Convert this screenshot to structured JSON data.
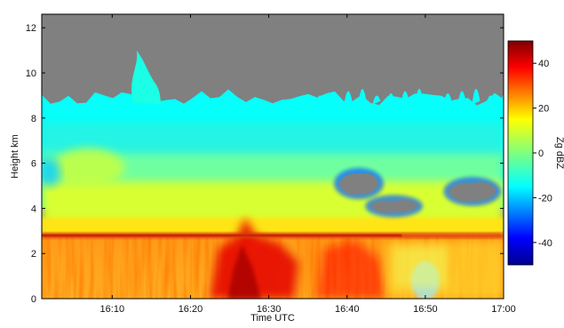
{
  "chart_data": {
    "type": "heatmap",
    "x_axis": {
      "label": "Time UTC",
      "range": [
        "16:01",
        "17:00"
      ],
      "ticks": [
        "16:10",
        "16:20",
        "16:30",
        "16:40",
        "16:50",
        "17:00"
      ]
    },
    "y_axis": {
      "label": "Height km",
      "range": [
        0,
        12.6
      ],
      "ticks": [
        0,
        2,
        4,
        6,
        8,
        10,
        12
      ]
    },
    "colorbar": {
      "label": "Zg dBZ",
      "range": [
        -50,
        50
      ],
      "ticks": [
        -40,
        -20,
        0,
        20,
        40
      ],
      "colormap": "jet"
    },
    "no_echo_color": "#808080",
    "features": {
      "bright_band_height_km": 2.8,
      "cloud_top_height_km": 8.6,
      "max_echo_top_km": 11.0,
      "strongest_echo_time": "16:27",
      "strongest_echo_dbz": 40,
      "background_rain_dbz": 22,
      "upper_cloud_dbz": -12,
      "echo_gap_regions": [
        {
          "time_start": "16:43",
          "time_end": "16:49",
          "height_km": [
            3.8,
            4.4
          ]
        },
        {
          "time_start": "16:39",
          "time_end": "16:44",
          "height_km": [
            4.6,
            5.6
          ]
        },
        {
          "time_start": "16:53",
          "time_end": "16:59",
          "height_km": [
            4.3,
            5.2
          ]
        }
      ]
    }
  }
}
